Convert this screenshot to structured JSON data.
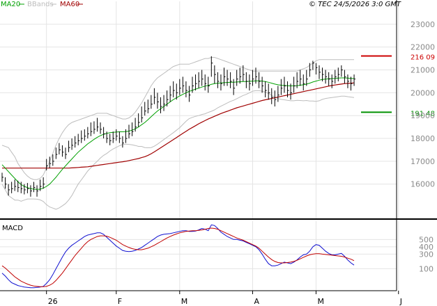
{
  "header": {
    "legend_ma20": "MA20",
    "legend_bbands": "BBands",
    "legend_ma60": "MA60",
    "source": "© TEC 24/5/2026 3:0 GMT"
  },
  "colors": {
    "ma20": "#00a000",
    "bbands": "#bdbdbd",
    "ma60": "#a00000",
    "macd": "#1010d0",
    "signal": "#c00000",
    "grid": "#e4e4e4",
    "axis": "#000000",
    "resistance": "#cc0000",
    "support": "#009000"
  },
  "chart_data": [
    {
      "type": "ohlc",
      "title": "",
      "ylim": [
        14500,
        24000
      ],
      "yticks": [
        16000,
        17000,
        18000,
        19000,
        20000,
        21000,
        22000,
        23000
      ],
      "ytick_labels": [
        "16000",
        "17000",
        "18000",
        "19000",
        "20000",
        "21000",
        "22000",
        "23000"
      ],
      "xticks": [
        {
          "label": "26",
          "index": 14
        },
        {
          "label": "F",
          "index": 36
        },
        {
          "label": "M",
          "index": 56
        },
        {
          "label": "A",
          "index": 79
        },
        {
          "label": "M",
          "index": 99
        },
        {
          "label": "J",
          "index": 125
        }
      ],
      "grid": true,
      "levels": [
        {
          "name": "resistance",
          "value": 21609,
          "label": "216 09"
        },
        {
          "name": "support",
          "value": 19148,
          "label": "191 48"
        }
      ],
      "close": [
        16300,
        16000,
        15750,
        15800,
        15900,
        15850,
        15800,
        15750,
        15800,
        15700,
        15850,
        15700,
        15900,
        16000,
        16800,
        16900,
        17000,
        17300,
        17500,
        17400,
        17300,
        17600,
        17700,
        17800,
        17900,
        18000,
        18100,
        18200,
        18300,
        18400,
        18500,
        18400,
        18200,
        18000,
        17900,
        18000,
        18100,
        18000,
        17800,
        18000,
        18200,
        18300,
        18500,
        18700,
        18900,
        19200,
        19300,
        19500,
        19800,
        19600,
        19400,
        19500,
        19700,
        19900,
        20100,
        20000,
        20200,
        20300,
        20100,
        19900,
        20300,
        20400,
        20500,
        20600,
        20400,
        20300,
        21300,
        20800,
        20500,
        20400,
        20700,
        20600,
        20500,
        20200,
        20600,
        20700,
        20800,
        20500,
        20400,
        20600,
        20700,
        20500,
        20300,
        20100,
        20000,
        19800,
        19700,
        19900,
        20200,
        20300,
        20100,
        20000,
        20300,
        20500,
        20600,
        20400,
        20600,
        21000,
        21300,
        21100,
        20900,
        20800,
        20700,
        20600,
        20500,
        20700,
        20800,
        21000,
        20700,
        20500,
        20400,
        20600
      ],
      "high": [
        16500,
        16300,
        16000,
        16100,
        16200,
        16150,
        16100,
        16000,
        16050,
        15950,
        16100,
        15950,
        16200,
        16300,
        17100,
        17200,
        17300,
        17600,
        17800,
        17700,
        17600,
        17900,
        18000,
        18100,
        18200,
        18350,
        18400,
        18500,
        18700,
        18750,
        18900,
        18700,
        18500,
        18300,
        18200,
        18300,
        18400,
        18300,
        18100,
        18400,
        18600,
        18700,
        18900,
        19100,
        19400,
        19600,
        19700,
        19900,
        20200,
        20000,
        19800,
        19900,
        20100,
        20300,
        20500,
        20400,
        20600,
        20700,
        20500,
        20300,
        20700,
        20800,
        20900,
        21000,
        20800,
        20700,
        21600,
        21200,
        20900,
        20800,
        21100,
        21000,
        20900,
        20600,
        21000,
        21100,
        21200,
        20900,
        20800,
        21000,
        21100,
        20900,
        20700,
        20500,
        20400,
        20200,
        20100,
        20300,
        20600,
        20700,
        20500,
        20400,
        20700,
        20900,
        21000,
        20800,
        21000,
        21300,
        21400,
        21300,
        21200,
        21100,
        21000,
        20900,
        20800,
        21000,
        21100,
        21200,
        21000,
        20800,
        20700,
        20800
      ],
      "low": [
        16100,
        15800,
        15500,
        15600,
        15700,
        15650,
        15600,
        15550,
        15600,
        15450,
        15650,
        15450,
        15700,
        15800,
        16600,
        16700,
        16800,
        17100,
        17300,
        17200,
        17100,
        17400,
        17500,
        17600,
        17700,
        17800,
        17900,
        18000,
        18100,
        18200,
        18300,
        18200,
        18000,
        17800,
        17700,
        17800,
        17900,
        17800,
        17600,
        17800,
        18000,
        18100,
        18300,
        18500,
        18700,
        19000,
        19100,
        19300,
        19500,
        19300,
        19100,
        19200,
        19400,
        19600,
        19800,
        19700,
        19900,
        20000,
        19800,
        19600,
        20000,
        20100,
        20200,
        20300,
        20100,
        20000,
        20700,
        20400,
        20200,
        20100,
        20300,
        20300,
        20200,
        19900,
        20300,
        20400,
        20500,
        20200,
        20100,
        20300,
        20400,
        20200,
        20000,
        19800,
        19700,
        19500,
        19400,
        19600,
        19900,
        20000,
        19800,
        19700,
        20000,
        20200,
        20300,
        20100,
        20300,
        20700,
        21000,
        20800,
        20600,
        20500,
        20400,
        20300,
        20200,
        20400,
        20500,
        20700,
        20400,
        20200,
        20100,
        20300
      ],
      "ma20": [
        16850,
        16700,
        16550,
        16400,
        16250,
        16100,
        15980,
        15900,
        15850,
        15800,
        15780,
        15770,
        15780,
        15820,
        15900,
        16000,
        16150,
        16300,
        16480,
        16650,
        16800,
        16950,
        17100,
        17250,
        17400,
        17520,
        17640,
        17760,
        17860,
        17960,
        18050,
        18120,
        18180,
        18220,
        18250,
        18270,
        18280,
        18290,
        18290,
        18300,
        18320,
        18360,
        18420,
        18500,
        18600,
        18700,
        18820,
        18950,
        19080,
        19200,
        19300,
        19400,
        19500,
        19600,
        19700,
        19780,
        19860,
        19930,
        20000,
        20060,
        20110,
        20160,
        20200,
        20250,
        20290,
        20320,
        20370,
        20400,
        20420,
        20430,
        20440,
        20450,
        20460,
        20460,
        20470,
        20480,
        20490,
        20490,
        20500,
        20510,
        20520,
        20520,
        20510,
        20490,
        20460,
        20420,
        20380,
        20350,
        20330,
        20320,
        20310,
        20300,
        20300,
        20310,
        20330,
        20350,
        20380,
        20420,
        20470,
        20510,
        20550,
        20580,
        20600,
        20610,
        20620,
        20630,
        20640,
        20650,
        20650,
        20640,
        20630,
        20620
      ],
      "ma60": [
        16700,
        16700,
        16700,
        16700,
        16700,
        16700,
        16700,
        16700,
        16700,
        16700,
        16700,
        16700,
        16700,
        16700,
        16700,
        16700,
        16700,
        16700,
        16700,
        16700,
        16700,
        16700,
        16710,
        16720,
        16730,
        16740,
        16750,
        16760,
        16780,
        16800,
        16820,
        16840,
        16860,
        16880,
        16900,
        16920,
        16940,
        16960,
        16980,
        17000,
        17030,
        17060,
        17090,
        17120,
        17160,
        17200,
        17260,
        17330,
        17410,
        17500,
        17590,
        17680,
        17770,
        17860,
        17950,
        18040,
        18130,
        18220,
        18310,
        18400,
        18480,
        18560,
        18640,
        18710,
        18780,
        18850,
        18910,
        18970,
        19030,
        19090,
        19140,
        19190,
        19240,
        19290,
        19340,
        19380,
        19420,
        19460,
        19500,
        19540,
        19580,
        19620,
        19660,
        19690,
        19720,
        19750,
        19780,
        19810,
        19840,
        19870,
        19900,
        19930,
        19960,
        19990,
        20020,
        20050,
        20080,
        20110,
        20140,
        20170,
        20200,
        20230,
        20260,
        20290,
        20320,
        20340,
        20360,
        20380,
        20400,
        20410,
        20420,
        20430
      ],
      "bb_upper": [
        17700,
        17650,
        17600,
        17400,
        17200,
        16900,
        16700,
        16500,
        16350,
        16250,
        16200,
        16200,
        16250,
        16400,
        16700,
        17000,
        17350,
        17700,
        18000,
        18250,
        18450,
        18600,
        18700,
        18750,
        18800,
        18850,
        18900,
        18950,
        19000,
        19050,
        19100,
        19100,
        19100,
        19100,
        19050,
        19000,
        18950,
        18900,
        18850,
        18850,
        18900,
        19000,
        19150,
        19350,
        19550,
        19800,
        20050,
        20300,
        20500,
        20650,
        20750,
        20850,
        20950,
        21050,
        21150,
        21200,
        21250,
        21250,
        21250,
        21250,
        21300,
        21350,
        21400,
        21450,
        21500,
        21500,
        21550,
        21550,
        21500,
        21450,
        21400,
        21350,
        21300,
        21250,
        21200,
        21150,
        21100,
        21050,
        21000,
        20950,
        20950,
        20950,
        20950,
        20950,
        20950,
        20950,
        20950,
        20950,
        20950,
        20950,
        20950,
        20950,
        20950,
        20950,
        21000,
        21050,
        21100,
        21200,
        21300,
        21400,
        21450,
        21450,
        21450,
        21450,
        21450,
        21450,
        21450,
        21450,
        21450,
        21450,
        21450,
        21450
      ],
      "bb_lower": [
        16000,
        15750,
        15500,
        15400,
        15300,
        15300,
        15250,
        15300,
        15350,
        15350,
        15350,
        15340,
        15310,
        15240,
        15100,
        15000,
        14950,
        14900,
        14960,
        15050,
        15150,
        15300,
        15500,
        15750,
        16000,
        16190,
        16380,
        16570,
        16720,
        16870,
        17000,
        17140,
        17260,
        17340,
        17450,
        17540,
        17610,
        17680,
        17730,
        17750,
        17740,
        17720,
        17690,
        17650,
        17650,
        17600,
        17590,
        17600,
        17660,
        17750,
        17850,
        17950,
        18050,
        18150,
        18250,
        18360,
        18470,
        18610,
        18750,
        18870,
        18920,
        18970,
        19000,
        19050,
        19080,
        19140,
        19190,
        19250,
        19340,
        19410,
        19480,
        19550,
        19620,
        19670,
        19740,
        19810,
        19880,
        19930,
        20000,
        20070,
        20090,
        20090,
        20070,
        20030,
        19970,
        19890,
        19810,
        19750,
        19710,
        19690,
        19670,
        19650,
        19650,
        19670,
        19660,
        19650,
        19660,
        19640,
        19640,
        19620,
        19650,
        19710,
        19750,
        19770,
        19790,
        19810,
        19830,
        19850,
        19850,
        19830,
        19810,
        19790
      ]
    },
    {
      "type": "line",
      "title": "MACD",
      "ylim": [
        -200,
        750
      ],
      "yticks": [
        100,
        300,
        400,
        500
      ],
      "ytick_labels": [
        "100",
        "300",
        "400",
        "500"
      ],
      "grid": true,
      "series": [
        {
          "name": "",
          "role": "macd",
          "values": [
            40,
            0,
            -50,
            -90,
            -110,
            -130,
            -140,
            -150,
            -155,
            -160,
            -160,
            -155,
            -150,
            -140,
            -100,
            -50,
            20,
            100,
            180,
            260,
            330,
            380,
            420,
            450,
            480,
            510,
            540,
            560,
            570,
            580,
            590,
            590,
            570,
            530,
            490,
            450,
            410,
            380,
            350,
            340,
            335,
            340,
            350,
            370,
            390,
            420,
            450,
            480,
            510,
            540,
            560,
            570,
            575,
            580,
            590,
            600,
            610,
            620,
            620,
            610,
            610,
            615,
            630,
            650,
            640,
            620,
            700,
            690,
            650,
            600,
            570,
            540,
            520,
            500,
            500,
            490,
            480,
            460,
            440,
            420,
            400,
            360,
            300,
            230,
            170,
            140,
            140,
            150,
            170,
            190,
            180,
            170,
            190,
            220,
            260,
            290,
            300,
            340,
            400,
            430,
            420,
            380,
            340,
            310,
            290,
            290,
            300,
            310,
            270,
            220,
            180,
            150
          ]
        },
        {
          "name": "",
          "role": "signal",
          "values": [
            140,
            110,
            70,
            30,
            -10,
            -40,
            -70,
            -90,
            -110,
            -125,
            -135,
            -140,
            -145,
            -145,
            -140,
            -125,
            -100,
            -60,
            -10,
            40,
            100,
            160,
            220,
            280,
            330,
            380,
            430,
            470,
            500,
            520,
            540,
            550,
            550,
            545,
            530,
            510,
            490,
            460,
            430,
            410,
            390,
            375,
            365,
            360,
            360,
            370,
            380,
            400,
            420,
            445,
            470,
            495,
            520,
            540,
            560,
            575,
            590,
            600,
            610,
            615,
            620,
            620,
            625,
            630,
            640,
            650,
            655,
            650,
            640,
            620,
            600,
            580,
            560,
            540,
            520,
            505,
            490,
            470,
            450,
            430,
            410,
            380,
            340,
            300,
            260,
            225,
            200,
            185,
            180,
            180,
            185,
            190,
            200,
            215,
            235,
            255,
            275,
            290,
            300,
            305,
            305,
            300,
            295,
            290,
            285,
            280,
            275,
            270,
            260,
            245,
            230,
            210
          ]
        }
      ]
    }
  ],
  "macd_label": "MACD"
}
